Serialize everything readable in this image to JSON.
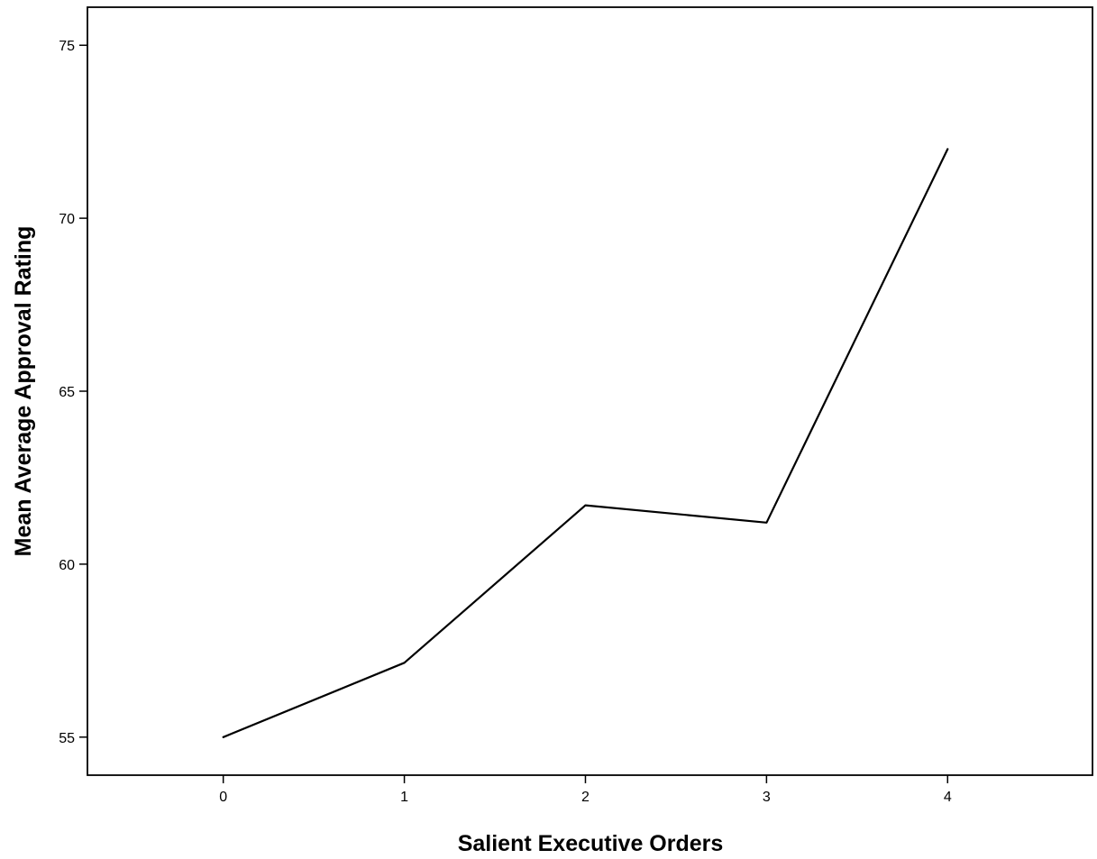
{
  "chart_data": {
    "type": "line",
    "xlabel": "Salient Executive Orders",
    "ylabel": "Mean Average Approval Rating",
    "x": [
      0,
      1,
      2,
      3,
      4
    ],
    "x_tick_labels": [
      "0",
      "1",
      "2",
      "3",
      "4"
    ],
    "xlim": [
      -0.75,
      4.8
    ],
    "ylim": [
      53.9,
      76.1
    ],
    "y_ticks": [
      55,
      60,
      65,
      70,
      75
    ],
    "y_tick_labels": [
      "55",
      "60",
      "65",
      "70",
      "75"
    ],
    "grid": false,
    "legend": "none",
    "series": [
      {
        "values": [
          55.0,
          57.15,
          61.7,
          61.2,
          72.0
        ]
      }
    ],
    "colors": {
      "line": "#000000",
      "frame": "#000000",
      "background": "#ffffff"
    }
  }
}
